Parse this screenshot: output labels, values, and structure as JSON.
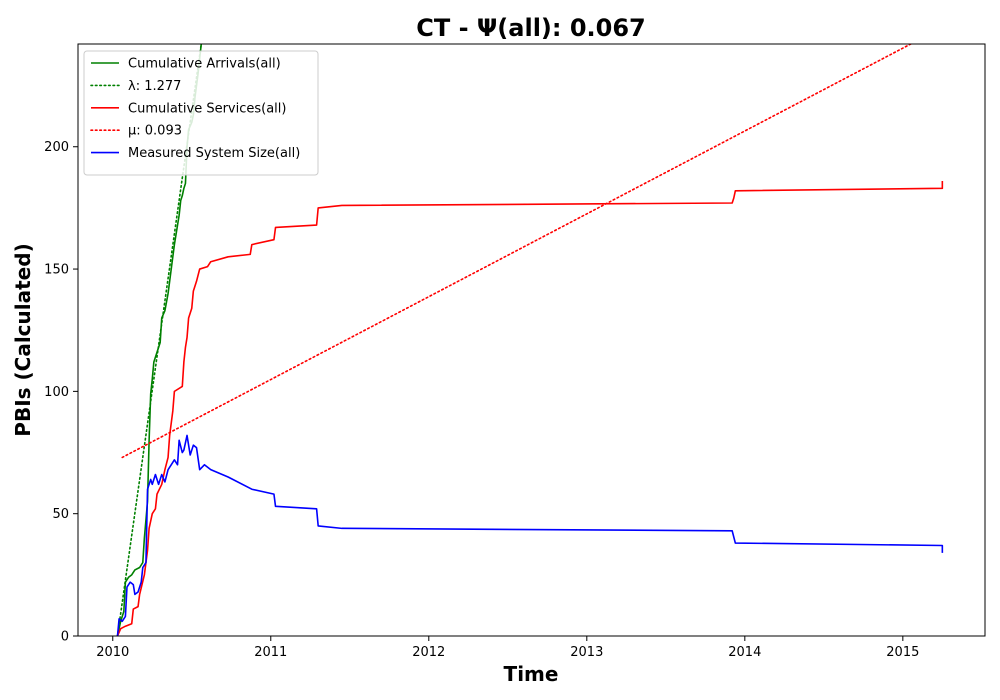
{
  "chart_data": {
    "type": "line",
    "title": "CT -  Ψ(all): 0.067",
    "xlabel": "Time",
    "ylabel": "PBIs (Calculated)",
    "xlim": [
      2009.78,
      2015.52
    ],
    "ylim": [
      0,
      242
    ],
    "x_ticks": [
      2010,
      2011,
      2012,
      2013,
      2014,
      2015
    ],
    "y_ticks": [
      0,
      50,
      100,
      150,
      200
    ],
    "grid": false,
    "legend_position": "top-left",
    "series": [
      {
        "name": "Cumulative Arrivals(all)",
        "style": "solid",
        "color": "#008000",
        "points": [
          [
            2010.03,
            0
          ],
          [
            2010.05,
            6
          ],
          [
            2010.07,
            10
          ],
          [
            2010.08,
            22
          ],
          [
            2010.1,
            24
          ],
          [
            2010.12,
            25
          ],
          [
            2010.14,
            27
          ],
          [
            2010.17,
            28
          ],
          [
            2010.19,
            30
          ],
          [
            2010.2,
            40
          ],
          [
            2010.22,
            55
          ],
          [
            2010.23,
            80
          ],
          [
            2010.24,
            99
          ],
          [
            2010.25,
            105
          ],
          [
            2010.26,
            112
          ],
          [
            2010.28,
            116
          ],
          [
            2010.3,
            120
          ],
          [
            2010.31,
            130
          ],
          [
            2010.33,
            133
          ],
          [
            2010.35,
            140
          ],
          [
            2010.36,
            145
          ],
          [
            2010.38,
            155
          ],
          [
            2010.39,
            160
          ],
          [
            2010.41,
            168
          ],
          [
            2010.42,
            172
          ],
          [
            2010.43,
            178
          ],
          [
            2010.44,
            180
          ],
          [
            2010.45,
            183
          ],
          [
            2010.46,
            185
          ],
          [
            2010.47,
            200
          ],
          [
            2010.48,
            207
          ],
          [
            2010.5,
            210
          ],
          [
            2010.51,
            213
          ],
          [
            2010.52,
            220
          ],
          [
            2010.54,
            230
          ],
          [
            2010.56,
            242
          ]
        ]
      },
      {
        "name": "λ: 1.277",
        "style": "dotted",
        "color": "#008000",
        "points": [
          [
            2010.03,
            0
          ],
          [
            2010.56,
            242
          ]
        ]
      },
      {
        "name": "Cumulative Services(all)",
        "style": "solid",
        "color": "#ff0000",
        "points": [
          [
            2010.03,
            0
          ],
          [
            2010.05,
            3
          ],
          [
            2010.08,
            4
          ],
          [
            2010.12,
            5
          ],
          [
            2010.13,
            11
          ],
          [
            2010.16,
            12
          ],
          [
            2010.17,
            17
          ],
          [
            2010.2,
            25
          ],
          [
            2010.22,
            35
          ],
          [
            2010.23,
            44
          ],
          [
            2010.25,
            50
          ],
          [
            2010.27,
            52
          ],
          [
            2010.28,
            58
          ],
          [
            2010.31,
            62
          ],
          [
            2010.33,
            68
          ],
          [
            2010.35,
            73
          ],
          [
            2010.36,
            82
          ],
          [
            2010.38,
            92
          ],
          [
            2010.39,
            100
          ],
          [
            2010.44,
            102
          ],
          [
            2010.45,
            112
          ],
          [
            2010.46,
            118
          ],
          [
            2010.47,
            122
          ],
          [
            2010.48,
            130
          ],
          [
            2010.5,
            134
          ],
          [
            2010.51,
            141
          ],
          [
            2010.53,
            145
          ],
          [
            2010.55,
            150
          ],
          [
            2010.6,
            151
          ],
          [
            2010.62,
            153
          ],
          [
            2010.73,
            155
          ],
          [
            2010.87,
            156
          ],
          [
            2010.88,
            160
          ],
          [
            2011.02,
            162
          ],
          [
            2011.03,
            167
          ],
          [
            2011.29,
            168
          ],
          [
            2011.3,
            175
          ],
          [
            2011.45,
            176
          ],
          [
            2013.92,
            177
          ],
          [
            2013.93,
            179
          ],
          [
            2013.94,
            182
          ],
          [
            2015.25,
            183
          ],
          [
            2015.25,
            186
          ]
        ]
      },
      {
        "name": "μ: 0.093",
        "style": "dotted",
        "color": "#ff0000",
        "points": [
          [
            2010.06,
            73
          ],
          [
            2015.05,
            242
          ]
        ]
      },
      {
        "name": "Measured System Size(all)",
        "style": "solid",
        "color": "#0000ff",
        "points": [
          [
            2010.03,
            0
          ],
          [
            2010.04,
            7
          ],
          [
            2010.06,
            6
          ],
          [
            2010.08,
            8
          ],
          [
            2010.09,
            20
          ],
          [
            2010.11,
            22
          ],
          [
            2010.13,
            21
          ],
          [
            2010.14,
            17
          ],
          [
            2010.16,
            18
          ],
          [
            2010.18,
            22
          ],
          [
            2010.19,
            28
          ],
          [
            2010.21,
            30
          ],
          [
            2010.22,
            60
          ],
          [
            2010.24,
            64
          ],
          [
            2010.25,
            62
          ],
          [
            2010.27,
            66
          ],
          [
            2010.29,
            62
          ],
          [
            2010.31,
            66
          ],
          [
            2010.33,
            63
          ],
          [
            2010.35,
            68
          ],
          [
            2010.37,
            70
          ],
          [
            2010.39,
            72
          ],
          [
            2010.41,
            70
          ],
          [
            2010.42,
            80
          ],
          [
            2010.44,
            75
          ],
          [
            2010.45,
            76
          ],
          [
            2010.47,
            82
          ],
          [
            2010.49,
            74
          ],
          [
            2010.51,
            78
          ],
          [
            2010.53,
            77
          ],
          [
            2010.55,
            68
          ],
          [
            2010.58,
            70
          ],
          [
            2010.62,
            68
          ],
          [
            2010.73,
            65
          ],
          [
            2010.88,
            60
          ],
          [
            2011.02,
            58
          ],
          [
            2011.03,
            53
          ],
          [
            2011.29,
            52
          ],
          [
            2011.3,
            45
          ],
          [
            2011.45,
            44
          ],
          [
            2013.92,
            43
          ],
          [
            2013.94,
            38
          ],
          [
            2015.25,
            37
          ],
          [
            2015.25,
            34
          ]
        ]
      }
    ]
  }
}
